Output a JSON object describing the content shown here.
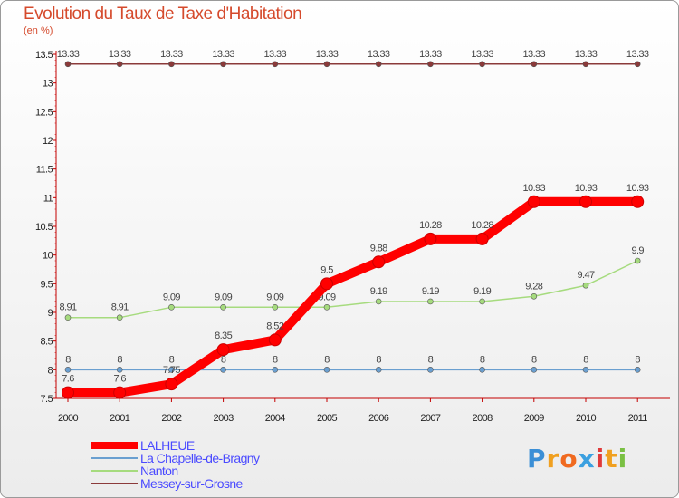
{
  "chart_data": {
    "type": "line",
    "title": "Evolution du Taux de Taxe d'Habitation",
    "ylabel": "(en %)",
    "ylim": [
      7.5,
      13.5
    ],
    "yticks": [
      "7.5",
      "8",
      "8.5",
      "9",
      "9.5",
      "10",
      "10.5",
      "11",
      "11.5",
      "12",
      "12.5",
      "13",
      "13.5"
    ],
    "x": [
      "2000",
      "2001",
      "2002",
      "2003",
      "2004",
      "2005",
      "2006",
      "2007",
      "2008",
      "2009",
      "2010",
      "2011"
    ],
    "series": [
      {
        "name": "LALHEUE",
        "color": "#ff0000",
        "values": [
          7.6,
          7.6,
          7.75,
          8.35,
          8.52,
          9.5,
          9.88,
          10.28,
          10.28,
          10.93,
          10.93,
          10.93
        ],
        "labels": [
          "7.6",
          "7.6",
          "7.75",
          "8.35",
          "8.52",
          "9.5",
          "9.88",
          "10.28",
          "10.28",
          "10.93",
          "10.93",
          "10.93"
        ]
      },
      {
        "name": "La Chapelle-de-Bragny",
        "color": "#6a9fd0",
        "values": [
          8,
          8,
          8,
          8,
          8,
          8,
          8,
          8,
          8,
          8,
          8,
          8
        ],
        "labels": [
          "8",
          "8",
          "8",
          "8",
          "8",
          "8",
          "8",
          "8",
          "8",
          "8",
          "8",
          "8"
        ]
      },
      {
        "name": "Nanton",
        "color": "#a6db7e",
        "values": [
          8.91,
          8.91,
          9.09,
          9.09,
          9.09,
          9.09,
          9.19,
          9.19,
          9.19,
          9.28,
          9.47,
          9.9
        ],
        "labels": [
          "8.91",
          "8.91",
          "9.09",
          "9.09",
          "9.09",
          "9.09",
          "9.19",
          "9.19",
          "9.19",
          "9.28",
          "9.47",
          "9.9"
        ]
      },
      {
        "name": "Messey-sur-Grosne",
        "color": "#8b3a3a",
        "values": [
          13.33,
          13.33,
          13.33,
          13.33,
          13.33,
          13.33,
          13.33,
          13.33,
          13.33,
          13.33,
          13.33,
          13.33
        ],
        "labels": [
          "13.33",
          "13.33",
          "13.33",
          "13.33",
          "13.33",
          "13.33",
          "13.33",
          "13.33",
          "13.33",
          "13.33",
          "13.33",
          "13.33"
        ]
      }
    ]
  },
  "logo": {
    "letters": [
      "P",
      "r",
      "o",
      "x",
      "i",
      "t",
      "i"
    ],
    "colors": [
      "#3b8fd6",
      "#f0a020",
      "#f06a20",
      "#3ba0e0",
      "#e03a3a",
      "#f0a020",
      "#7ac043"
    ]
  }
}
